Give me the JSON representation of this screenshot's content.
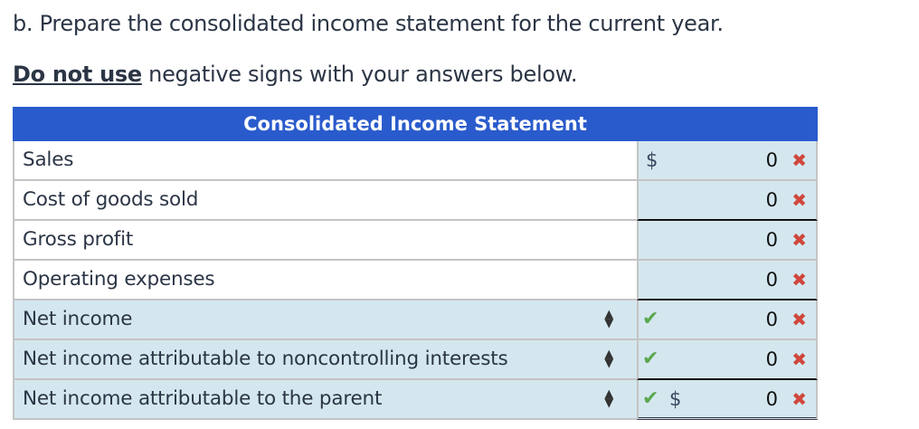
{
  "question": "b. Prepare the consolidated income statement for the current year.",
  "note": {
    "bold": "Do not use",
    "rest": " negative signs with your answers below."
  },
  "table": {
    "title": "Consolidated Income Statement",
    "rows": [
      {
        "label": "Sales",
        "currency": "$",
        "value": "0",
        "status": "incorrect"
      },
      {
        "label": "Cost of goods sold",
        "value": "0",
        "status": "incorrect"
      },
      {
        "label": "Gross profit",
        "value": "0",
        "status": "incorrect"
      },
      {
        "label": "Operating expenses",
        "value": "0",
        "status": "incorrect"
      },
      {
        "label": "Net income",
        "value": "0",
        "status": "incorrect",
        "label_check": "correct"
      },
      {
        "label": "Net income attributable to noncontrolling interests",
        "value": "0",
        "status": "incorrect",
        "label_check": "correct"
      },
      {
        "label": "Net income attributable to the parent",
        "currency": "$",
        "value": "0",
        "status": "incorrect",
        "label_check": "correct"
      }
    ]
  },
  "icons": {
    "check": "✔",
    "x": "✖",
    "sort": "⬍"
  },
  "colors": {
    "header": "#2a5bcc",
    "cell": "#d4e7ef",
    "correct": "#5aa84f",
    "incorrect": "#d0473c"
  }
}
